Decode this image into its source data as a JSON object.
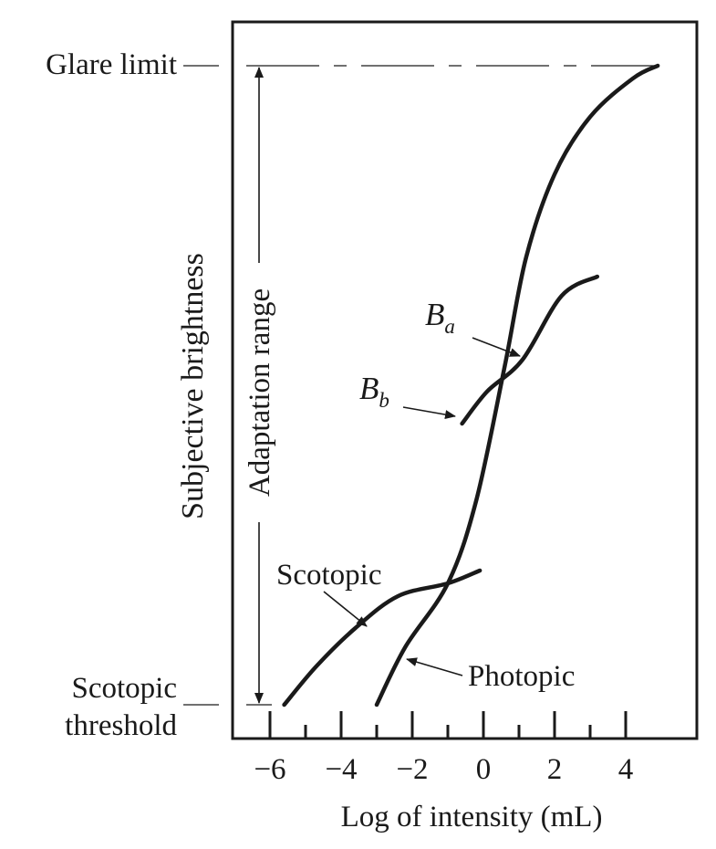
{
  "chart_data": {
    "type": "line",
    "title": "",
    "xlabel": "Log of intensity (mL)",
    "ylabel": "Subjective brightness",
    "xlim": [
      -7,
      6
    ],
    "x_ticks": [
      -6,
      -4,
      -2,
      0,
      2,
      4
    ],
    "x_tick_labels": [
      "−6",
      "−4",
      "−2",
      "0",
      "2",
      "4"
    ],
    "x_minor_ticks": [
      -5,
      -3,
      -1,
      1,
      3
    ],
    "grid": false,
    "legend": "none",
    "y_markers": {
      "glare_label": "Glare limit",
      "threshold_label_line1": "Scotopic",
      "threshold_label_line2": "threshold"
    },
    "range_label": "Adaptation range",
    "series": [
      {
        "name": "Photopic",
        "points": [
          [
            -3.0,
            0.0
          ],
          [
            -2.2,
            0.09
          ],
          [
            -1.0,
            0.19
          ],
          [
            -0.2,
            0.32
          ],
          [
            0.6,
            0.53
          ],
          [
            1.2,
            0.7
          ],
          [
            2.0,
            0.83
          ],
          [
            3.0,
            0.92
          ],
          [
            4.2,
            0.98
          ],
          [
            4.9,
            1.0
          ]
        ]
      },
      {
        "name": "Scotopic",
        "points": [
          [
            -5.6,
            0.0
          ],
          [
            -4.7,
            0.06
          ],
          [
            -3.6,
            0.12
          ],
          [
            -2.4,
            0.17
          ],
          [
            -1.0,
            0.19
          ],
          [
            -0.1,
            0.21
          ]
        ]
      },
      {
        "name": "Bb",
        "points": [
          [
            -0.6,
            0.44
          ],
          [
            0.1,
            0.49
          ],
          [
            1.1,
            0.54
          ],
          [
            2.2,
            0.64
          ],
          [
            3.2,
            0.67
          ]
        ]
      }
    ],
    "annotations": [
      {
        "key": "ba",
        "main": "B",
        "sub": "a"
      },
      {
        "key": "bb",
        "main": "B",
        "sub": "b"
      },
      {
        "key": "scotopic",
        "main": "Scotopic",
        "sub": ""
      },
      {
        "key": "photopic",
        "main": "Photopic",
        "sub": ""
      }
    ]
  }
}
